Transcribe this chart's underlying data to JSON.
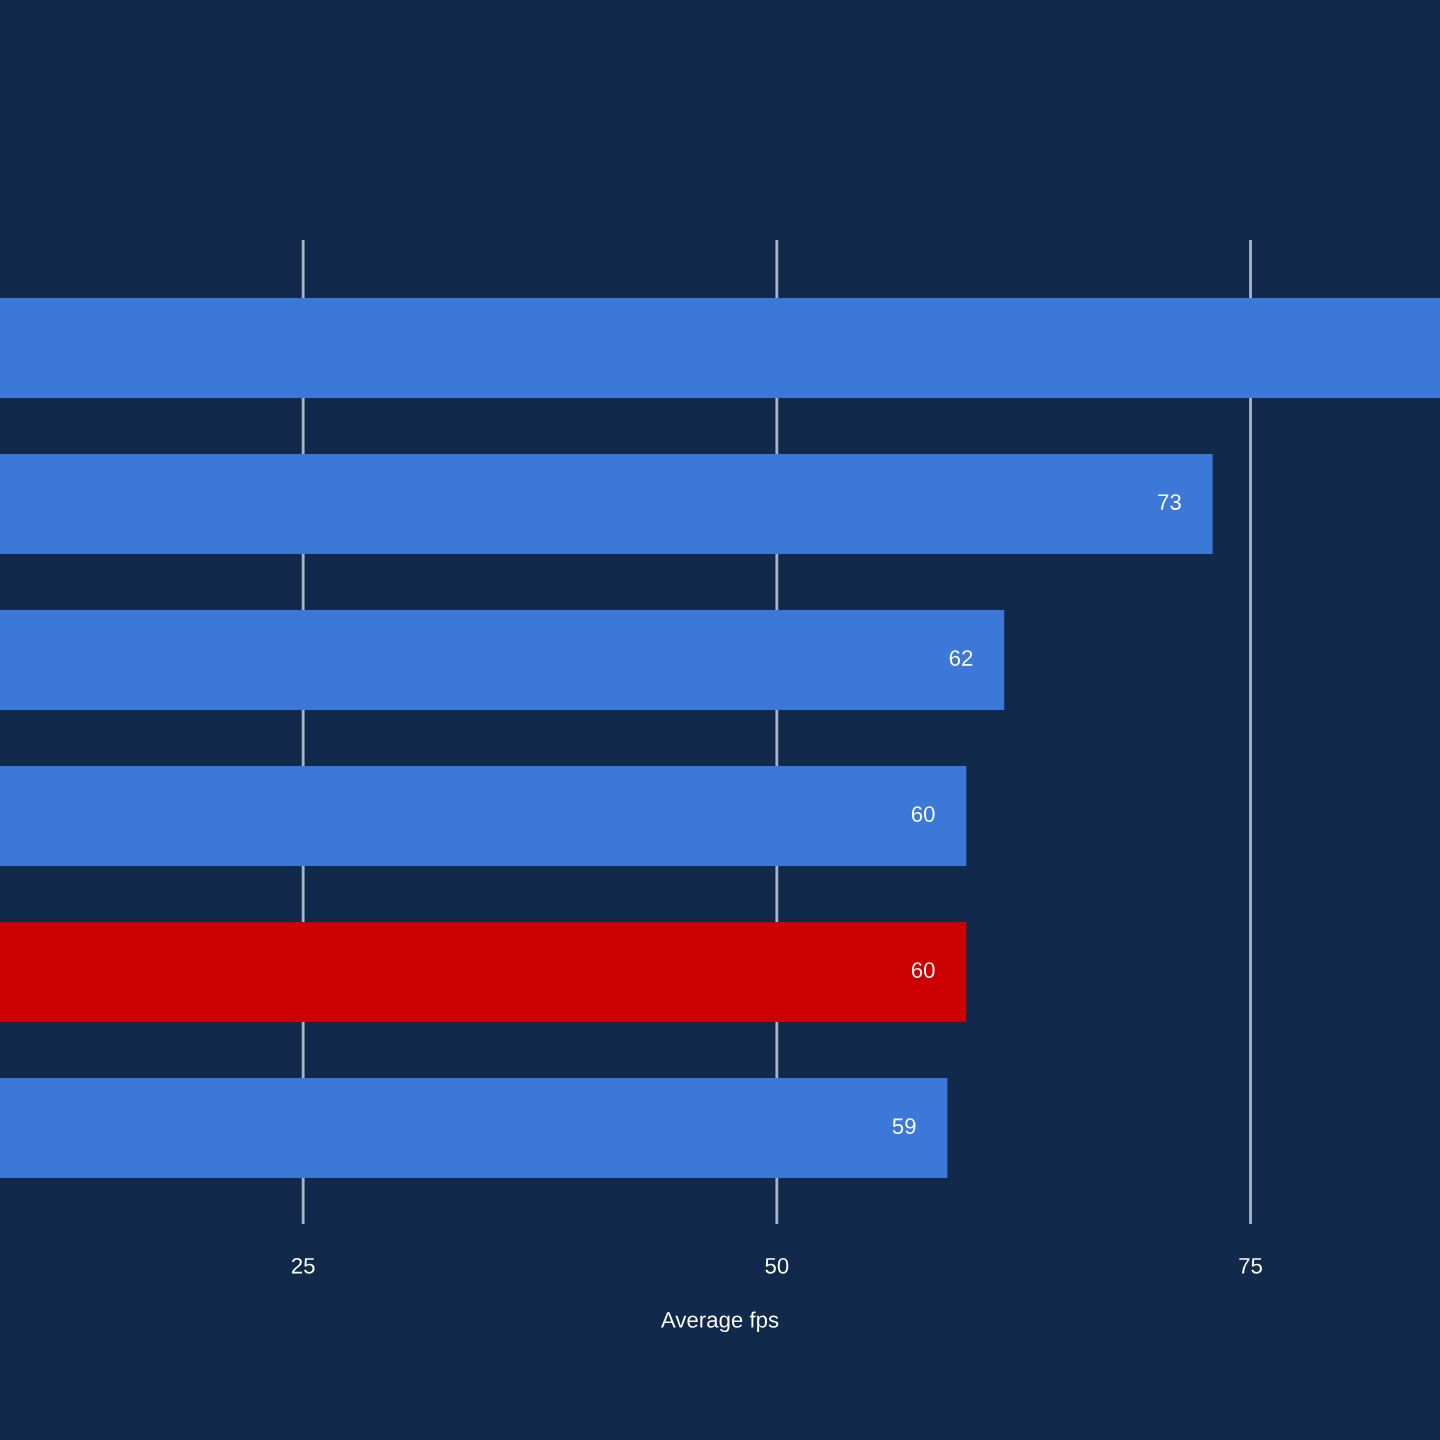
{
  "chart_data": {
    "type": "bar",
    "orientation": "horizontal",
    "xlabel": "Average fps",
    "categories": [
      null,
      null,
      null,
      null,
      null,
      null
    ],
    "values": [
      85,
      73,
      62,
      60,
      60,
      59
    ],
    "colors": [
      "#3c78d8",
      "#3c78d8",
      "#3c78d8",
      "#3c78d8",
      "#cc0000",
      "#3c78d8"
    ],
    "value_labels": [
      null,
      "73",
      "62",
      "60",
      "60",
      "59"
    ],
    "xlim": [
      9,
      85
    ],
    "xticks": [
      25,
      50,
      75
    ],
    "grid": "x",
    "legend": false
  }
}
